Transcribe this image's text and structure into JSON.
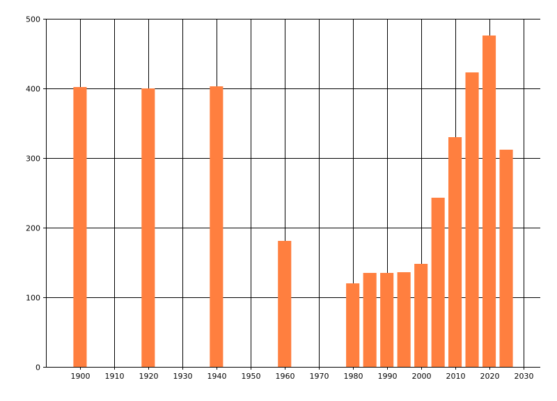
{
  "chart_data": {
    "type": "bar",
    "title": "",
    "xlabel": "",
    "ylabel": "",
    "x": [
      1900,
      1920,
      1940,
      1960,
      1980,
      1985,
      1990,
      1995,
      2000,
      2005,
      2010,
      2015,
      2020,
      2025
    ],
    "values": [
      402,
      400,
      403,
      181,
      120,
      135,
      135,
      136,
      148,
      243,
      330,
      423,
      476,
      312
    ],
    "xlim": [
      1890,
      2035
    ],
    "ylim": [
      0,
      500
    ],
    "x_ticks": [
      "1900",
      "1910",
      "1920",
      "1930",
      "1940",
      "1950",
      "1960",
      "1970",
      "1980",
      "1990",
      "2000",
      "2010",
      "2020",
      "2030"
    ],
    "y_ticks": [
      "0",
      "100",
      "200",
      "300",
      "400",
      "500"
    ],
    "grid": true,
    "bar_color": "#ff7f3f"
  }
}
